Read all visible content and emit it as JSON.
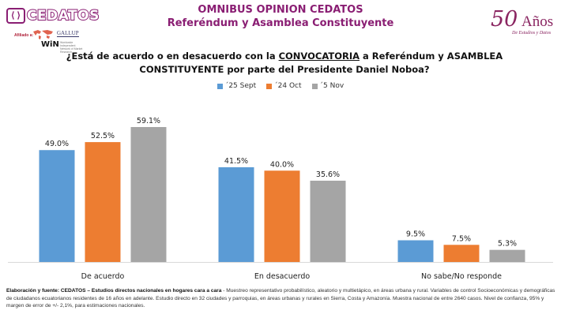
{
  "header": {
    "title": "OMNIBUS OPINION CEDATOS",
    "subtitle": "Referéndum y Asamblea Constituyente"
  },
  "logo": {
    "brand": "CEDATOS",
    "affiliate_label": "Afiliado a:",
    "gallup": "GALLUP",
    "win": "WiN",
    "win_sub": "Worldwide Independent Network of Market Research"
  },
  "anniversary": {
    "number": "50",
    "word": "Años",
    "tagline": "De Estudios y Datos"
  },
  "question": {
    "part1": "¿Está de acuerdo o en desacuerdo con la ",
    "underlined": "CONVOCATORIA",
    "part2": " a Referéndum y ASAMBLEA CONSTITUYENTE por parte del Presidente Daniel Noboa?"
  },
  "colors": {
    "brand": "#8a1e73",
    "series_1": "#5b9bd5",
    "series_2": "#ed7d31",
    "series_3": "#a5a5a5"
  },
  "chart_data": {
    "type": "bar",
    "title": "¿Está de acuerdo o en desacuerdo con la CONVOCATORIA a Referéndum y ASAMBLEA CONSTITUYENTE por parte del Presidente Daniel Noboa?",
    "categories": [
      "De acuerdo",
      "En desacuerdo",
      "No sabe/No responde"
    ],
    "series": [
      {
        "name": "´25 Sept",
        "color": "#5b9bd5",
        "values": [
          49.0,
          41.5,
          9.5
        ],
        "labels": [
          "49.0%",
          "41.5%",
          "9.5%"
        ]
      },
      {
        "name": "´24 Oct",
        "color": "#ed7d31",
        "values": [
          52.5,
          40.0,
          7.5
        ],
        "labels": [
          "52.5%",
          "40.0%",
          "7.5%"
        ]
      },
      {
        "name": "´5 Nov",
        "color": "#a5a5a5",
        "values": [
          59.1,
          35.6,
          5.3
        ],
        "labels": [
          "59.1%",
          "35.6%",
          "5.3%"
        ]
      }
    ],
    "xlabel": "",
    "ylabel": "",
    "ylim": [
      0,
      60
    ],
    "grid": false,
    "legend_position": "top-center",
    "unit": "%"
  },
  "footnote": {
    "bold": "Elaboración y fuente: CEDATOS – Estudios directos nacionales en hogares cara a cara",
    "text": " - Muestreo representativo probabilístico, aleatorio y multietápico, en áreas urbana y rural.  Variables de control Socioeconómicas y demográficas de ciudadanos ecuatorianos residentes de 16 años en adelante. Estudio directo en 32 ciudades y parroquias, en áreas urbanas y rurales en Sierra, Costa y Amazonía. Muestra nacional de entre 2640 casos. Nivel de confianza, 95% y margen  de error de +/- 2,1%, para estimaciones nacionales."
  }
}
